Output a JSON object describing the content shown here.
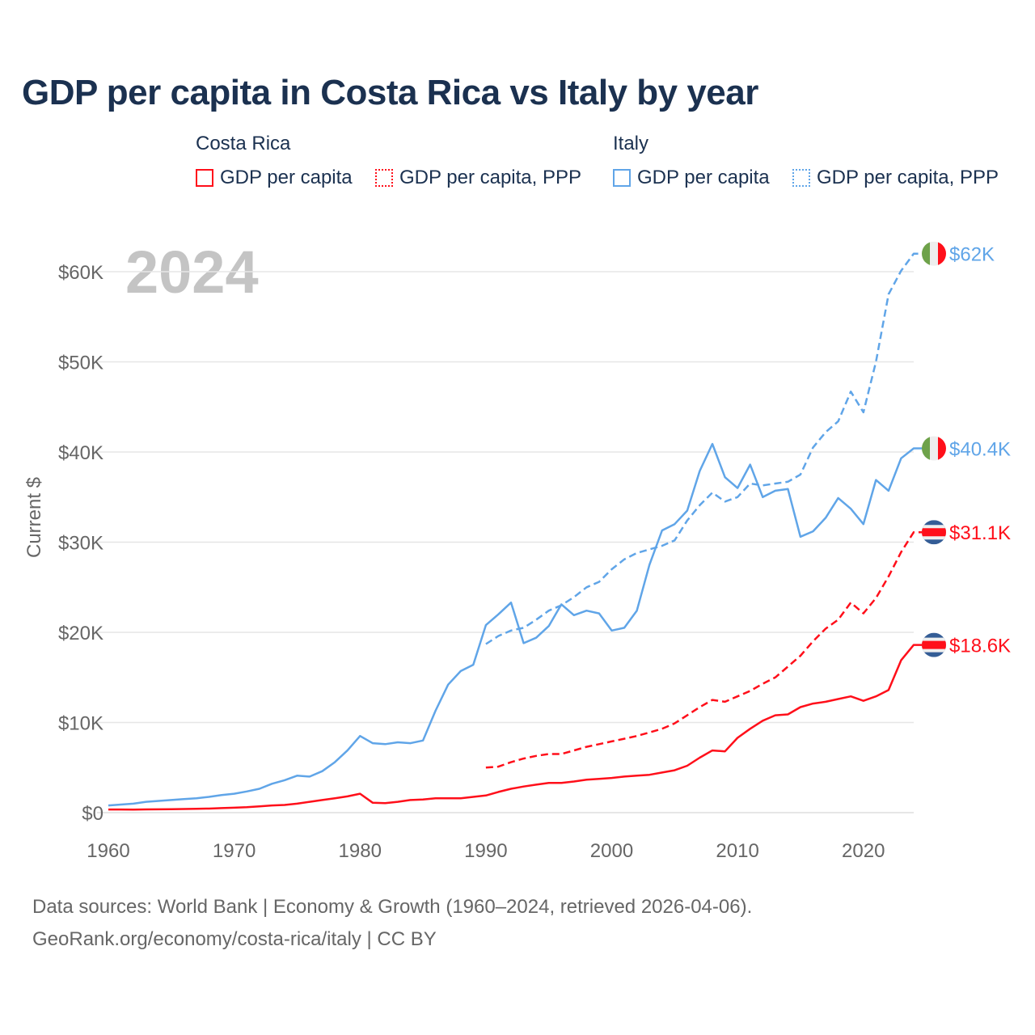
{
  "title": "GDP per capita in Costa Rica vs Italy by year",
  "legend": {
    "groups": [
      {
        "name": "Costa Rica",
        "items": [
          "GDP per capita",
          "GDP per capita, PPP"
        ]
      },
      {
        "name": "Italy",
        "items": [
          "GDP per capita",
          "GDP per capita, PPP"
        ]
      }
    ]
  },
  "year_watermark": "2024",
  "sources": [
    "Data sources: World Bank | Economy & Growth (1960–2024, retrieved 2026-04-06).",
    "GeoRank.org/economy/costa-rica/italy | CC BY"
  ],
  "colors": {
    "costa_rica": "#ff0f1a",
    "italy": "#60a5e8",
    "grid": "#e6e6e6",
    "axis_text": "#666666"
  },
  "chart_data": {
    "type": "line",
    "title": "GDP per capita in Costa Rica vs Italy by year",
    "xlabel": "",
    "ylabel": "Current $",
    "xlim": [
      1960,
      2024
    ],
    "ylim": [
      0,
      65000
    ],
    "x_ticks": [
      1960,
      1970,
      1980,
      1990,
      2000,
      2010,
      2020
    ],
    "x_tick_labels": [
      "1960",
      "1970",
      "1980",
      "1990",
      "2000",
      "2010",
      "2020"
    ],
    "y_ticks": [
      0,
      10000,
      20000,
      30000,
      40000,
      50000,
      60000
    ],
    "y_tick_labels": [
      "$0",
      "$10K",
      "$20K",
      "$30K",
      "$40K",
      "$50K",
      "$60K"
    ],
    "grid": true,
    "legend_position": "top",
    "series": [
      {
        "name": "Costa Rica GDP per capita",
        "country": "costa_rica",
        "style": "solid",
        "start": 1960,
        "end_label": "$18.6K",
        "values": [
          350,
          350,
          340,
          360,
          370,
          380,
          400,
          430,
          450,
          500,
          550,
          600,
          700,
          800,
          850,
          1000,
          1200,
          1400,
          1600,
          1800,
          2100,
          1100,
          1050,
          1200,
          1400,
          1450,
          1600,
          1600,
          1600,
          1750,
          1900,
          2300,
          2650,
          2900,
          3100,
          3300,
          3300,
          3450,
          3650,
          3750,
          3850,
          4000,
          4100,
          4200,
          4450,
          4700,
          5200,
          6100,
          6900,
          6800,
          8300,
          9300,
          10200,
          10800,
          10900,
          11700,
          12100,
          12300,
          12600,
          12900,
          12400,
          12900,
          13600,
          16900,
          18600
        ]
      },
      {
        "name": "Costa Rica GDP per capita, PPP",
        "country": "costa_rica",
        "style": "dashed",
        "start": 1990,
        "end_label": "$31.1K",
        "values": [
          5000,
          5100,
          5600,
          6000,
          6300,
          6500,
          6500,
          6900,
          7300,
          7600,
          7900,
          8200,
          8500,
          8900,
          9300,
          9900,
          10800,
          11700,
          12500,
          12300,
          12900,
          13500,
          14300,
          15000,
          16200,
          17400,
          19000,
          20400,
          21400,
          23300,
          22100,
          23800,
          26200,
          28900,
          31100
        ]
      },
      {
        "name": "Italy GDP per capita",
        "country": "italy",
        "style": "solid",
        "start": 1960,
        "end_label": "$40.4K",
        "values": [
          800,
          900,
          1000,
          1200,
          1300,
          1400,
          1500,
          1600,
          1750,
          1950,
          2100,
          2350,
          2650,
          3200,
          3600,
          4100,
          4000,
          4600,
          5600,
          6900,
          8500,
          7700,
          7600,
          7800,
          7700,
          8000,
          11300,
          14200,
          15700,
          16400,
          20800,
          22000,
          23300,
          18800,
          19400,
          20700,
          23100,
          21900,
          22400,
          22100,
          20200,
          20500,
          22400,
          27500,
          31300,
          32000,
          33500,
          37900,
          40900,
          37200,
          36000,
          38600,
          35000,
          35700,
          35900,
          30600,
          31200,
          32700,
          34900,
          33700,
          32000,
          36900,
          35700,
          39300,
          40400
        ]
      },
      {
        "name": "Italy GDP per capita, PPP",
        "country": "italy",
        "style": "dashed",
        "start": 1990,
        "end_label": "$62K",
        "values": [
          18700,
          19600,
          20200,
          20500,
          21400,
          22400,
          23000,
          23900,
          25000,
          25600,
          27000,
          28100,
          28800,
          29200,
          29600,
          30200,
          32400,
          34100,
          35500,
          34500,
          35000,
          36500,
          36300,
          36500,
          36700,
          37500,
          40500,
          42200,
          43400,
          46700,
          44400,
          50000,
          57500,
          60100,
          62000
        ]
      }
    ]
  }
}
